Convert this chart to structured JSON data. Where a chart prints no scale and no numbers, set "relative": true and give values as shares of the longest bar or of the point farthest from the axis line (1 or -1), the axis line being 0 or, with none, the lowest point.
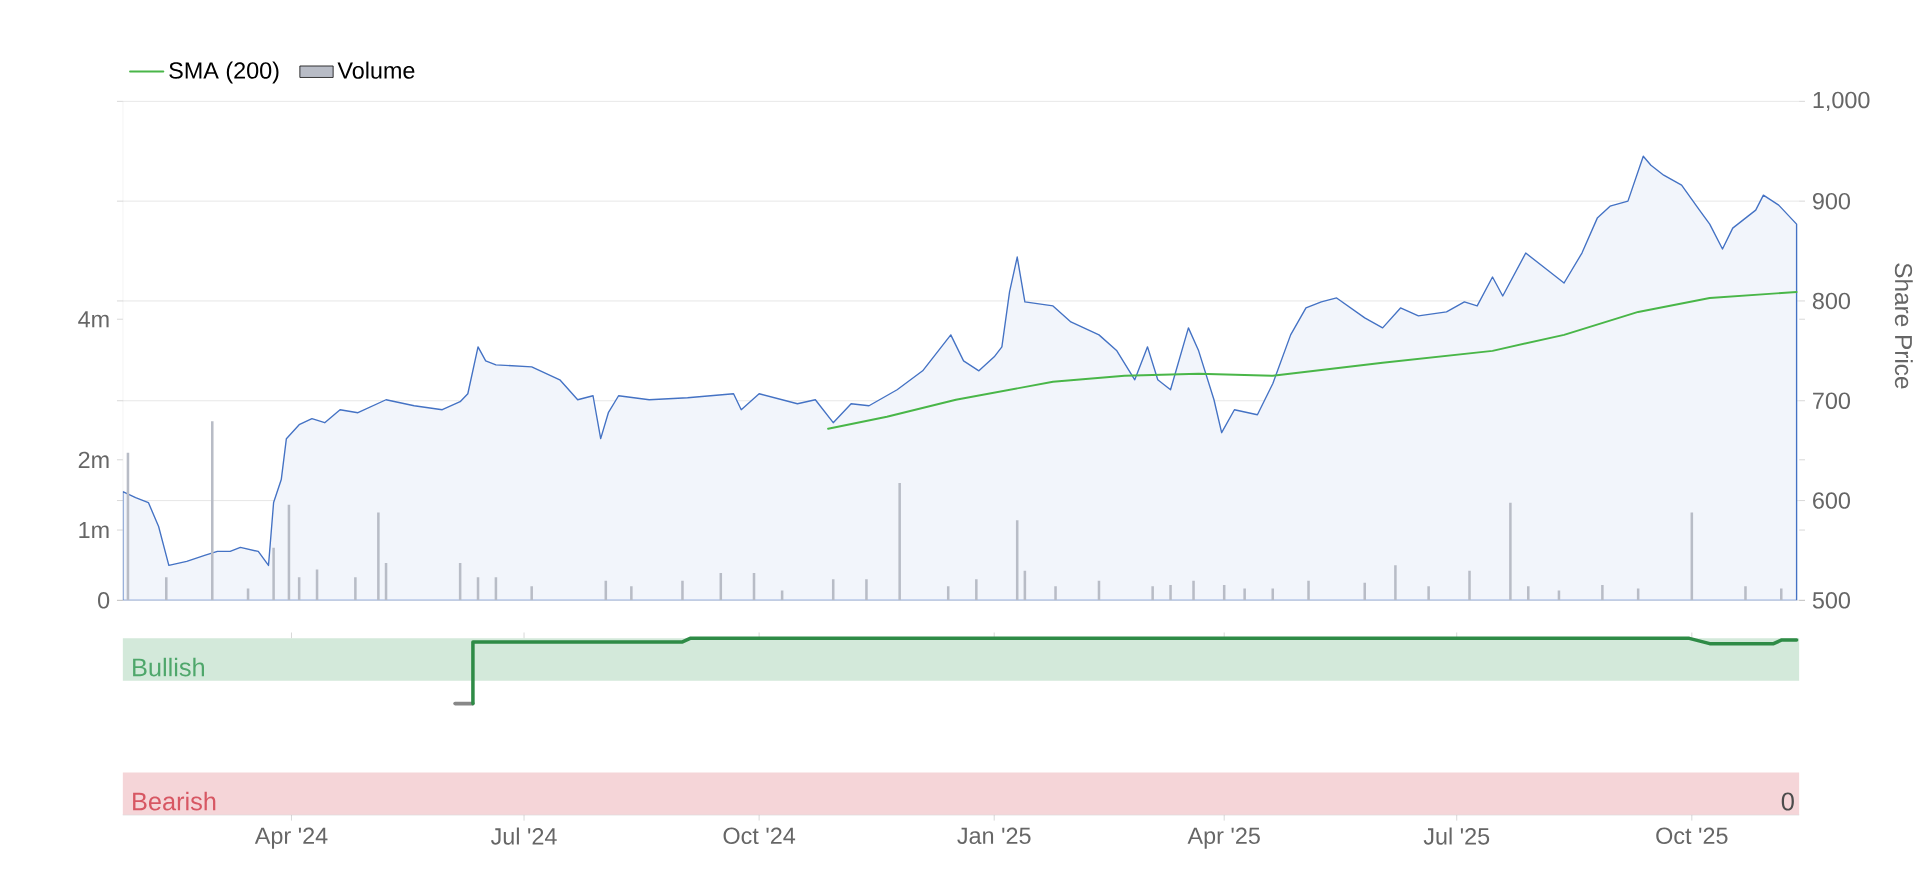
{
  "chart_data": [
    {
      "type": "line",
      "ylabel": "Share Price",
      "xlim": [
        "2024-01-26",
        "2025-11-12"
      ],
      "ylim": [
        500,
        1000
      ],
      "yticks": [
        500,
        600,
        700,
        800,
        900,
        {
          "value": 1000,
          "label": "1,000"
        }
      ],
      "y2lim": [
        0,
        7.1
      ],
      "y2ticks": [
        0,
        {
          "value": 1,
          "label": "1m"
        },
        {
          "value": 2,
          "label": "2m"
        },
        {
          "value": 4,
          "label": "4m"
        }
      ],
      "tick_labels": "y",
      "grid": "y",
      "legend": "top left",
      "series": [
        {
          "type": "area",
          "color": "#4472c4",
          "axis": "y",
          "x": [
            "2024-01-26",
            "2024-01-31",
            "2024-02-05",
            "2024-02-09",
            "2024-02-13",
            "2024-02-20",
            "2024-02-27",
            "2024-03-03",
            "2024-03-08",
            "2024-03-12",
            "2024-03-19",
            "2024-03-23",
            "2024-03-25",
            "2024-03-28",
            "2024-03-30",
            "2024-04-04",
            "2024-04-09",
            "2024-04-14",
            "2024-04-20",
            "2024-04-27",
            "2024-05-08",
            "2024-05-19",
            "2024-05-30",
            "2024-06-06",
            "2024-06-09",
            "2024-06-13",
            "2024-06-16",
            "2024-06-20",
            "2024-07-04",
            "2024-07-15",
            "2024-07-22",
            "2024-07-28",
            "2024-07-31",
            "2024-08-03",
            "2024-08-07",
            "2024-08-19",
            "2024-09-03",
            "2024-09-21",
            "2024-09-24",
            "2024-10-01",
            "2024-10-16",
            "2024-10-23",
            "2024-10-30",
            "2024-11-06",
            "2024-11-13",
            "2024-11-24",
            "2024-12-04",
            "2024-12-15",
            "2024-12-20",
            "2024-12-26",
            "2025-01-01",
            "2025-01-04",
            "2025-01-07",
            "2025-01-10",
            "2025-01-13",
            "2025-01-24",
            "2025-01-31",
            "2025-02-11",
            "2025-02-18",
            "2025-02-25",
            "2025-03-02",
            "2025-03-06",
            "2025-03-11",
            "2025-03-18",
            "2025-03-22",
            "2025-03-28",
            "2025-03-31",
            "2025-04-05",
            "2025-04-14",
            "2025-04-20",
            "2025-04-27",
            "2025-05-03",
            "2025-05-09",
            "2025-05-15",
            "2025-05-26",
            "2025-06-02",
            "2025-06-09",
            "2025-06-16",
            "2025-06-27",
            "2025-07-04",
            "2025-07-09",
            "2025-07-15",
            "2025-07-19",
            "2025-07-28",
            "2025-08-05",
            "2025-08-12",
            "2025-08-19",
            "2025-08-25",
            "2025-08-30",
            "2025-09-06",
            "2025-09-12",
            "2025-09-15",
            "2025-09-20",
            "2025-09-27",
            "2025-10-04",
            "2025-10-08",
            "2025-10-13",
            "2025-10-17",
            "2025-10-26",
            "2025-10-29",
            "2025-11-04",
            "2025-11-11"
          ],
          "values": [
            609,
            603,
            598,
            574,
            535,
            539,
            545,
            549,
            549,
            553,
            549,
            535,
            598,
            621,
            662,
            676,
            682,
            678,
            691,
            688,
            701,
            695,
            691,
            699,
            707,
            754,
            740,
            736,
            734,
            721,
            701,
            705,
            662,
            688,
            705,
            701,
            703,
            707,
            691,
            707,
            697,
            701,
            678,
            697,
            695,
            711,
            730,
            766,
            740,
            730,
            744,
            754,
            809,
            844,
            799,
            795,
            779,
            766,
            750,
            721,
            754,
            721,
            711,
            773,
            750,
            701,
            668,
            691,
            686,
            717,
            766,
            793,
            799,
            803,
            783,
            773,
            793,
            785,
            789,
            799,
            795,
            824,
            805,
            848,
            832,
            818,
            848,
            883,
            895,
            900,
            945,
            936,
            926,
            916,
            891,
            877,
            852,
            873,
            891,
            906,
            896,
            877
          ]
        },
        {
          "type": "line",
          "name": "SMA (200)",
          "color": "#49b648",
          "axis": "y",
          "x": [
            "2024-10-28",
            "2024-11-20",
            "2024-12-17",
            "2025-01-24",
            "2025-02-21",
            "2025-03-22",
            "2025-04-20",
            "2025-06-02",
            "2025-07-15",
            "2025-08-12",
            "2025-09-10",
            "2025-10-08",
            "2025-11-11"
          ],
          "values": [
            672,
            684,
            701,
            719,
            725,
            727,
            725,
            738,
            750,
            766,
            789,
            803,
            809
          ]
        },
        {
          "type": "bar",
          "name": "Volume",
          "color": "#b8bcc6",
          "axis": "y2",
          "x": [
            "2024-01-28",
            "2024-02-12",
            "2024-03-01",
            "2024-03-15",
            "2024-03-25",
            "2024-03-31",
            "2024-04-04",
            "2024-04-11",
            "2024-04-26",
            "2024-05-05",
            "2024-05-08",
            "2024-06-06",
            "2024-06-13",
            "2024-06-20",
            "2024-07-04",
            "2024-08-02",
            "2024-08-12",
            "2024-09-01",
            "2024-09-16",
            "2024-09-29",
            "2024-10-10",
            "2024-10-30",
            "2024-11-12",
            "2024-11-25",
            "2024-12-14",
            "2024-12-25",
            "2025-01-10",
            "2025-01-13",
            "2025-01-25",
            "2025-02-11",
            "2025-03-04",
            "2025-03-11",
            "2025-03-20",
            "2025-04-01",
            "2025-04-09",
            "2025-04-20",
            "2025-05-04",
            "2025-05-26",
            "2025-06-07",
            "2025-06-20",
            "2025-07-06",
            "2025-07-22",
            "2025-07-29",
            "2025-08-10",
            "2025-08-27",
            "2025-09-10",
            "2025-10-01",
            "2025-10-22",
            "2025-11-05"
          ],
          "values": [
            2.1,
            0.33,
            2.55,
            0.17,
            0.75,
            1.36,
            0.33,
            0.44,
            0.33,
            1.25,
            0.53,
            0.53,
            0.33,
            0.33,
            0.2,
            0.28,
            0.2,
            0.28,
            0.39,
            0.39,
            0.14,
            0.3,
            0.3,
            1.67,
            0.2,
            0.3,
            1.14,
            0.42,
            0.2,
            0.28,
            0.2,
            0.22,
            0.28,
            0.22,
            0.17,
            0.17,
            0.28,
            0.25,
            0.5,
            0.2,
            0.42,
            1.39,
            0.2,
            0.14,
            0.22,
            0.17,
            1.25,
            0.2,
            0.17
          ]
        }
      ]
    },
    {
      "type": "line",
      "relative": true,
      "xlim": [
        "2024-01-26",
        "2025-11-12"
      ],
      "xticks": [
        {
          "value": "2024-04-01",
          "label": "Apr '24"
        },
        {
          "value": "2024-07-01",
          "label": "Jul '24"
        },
        {
          "value": "2024-10-01",
          "label": "Oct '24"
        },
        {
          "value": "2025-01-01",
          "label": "Jan '25"
        },
        {
          "value": "2025-04-01",
          "label": "Apr '25"
        },
        {
          "value": "2025-07-01",
          "label": "Jul '25"
        },
        {
          "value": "2025-10-01",
          "label": "Oct '25"
        }
      ],
      "tick_labels": "x",
      "bands": [
        {
          "axis": "y",
          "from": 0.76,
          "to": 1.0,
          "label": "Bullish",
          "color": "#d3e9da"
        },
        {
          "axis": "y",
          "from": 0,
          "to": 0.24,
          "label": "Bearish",
          "color": "#f5d5d8"
        }
      ],
      "annotations": [
        "0"
      ],
      "series": [
        {
          "color": "#888888",
          "x": [
            "2024-06-04",
            "2024-06-11"
          ],
          "values": [
            0.63,
            0.63
          ]
        },
        {
          "color": "#2e8b46",
          "x": [
            "2024-06-11",
            "2024-06-11",
            "2024-09-01",
            "2024-09-04",
            "2025-09-30",
            "2025-10-08",
            "2025-11-02",
            "2025-11-05",
            "2025-11-11"
          ],
          "values": [
            0.63,
            0.98,
            0.98,
            1.0,
            1.0,
            0.97,
            0.97,
            0.99,
            0.99
          ]
        }
      ]
    }
  ]
}
